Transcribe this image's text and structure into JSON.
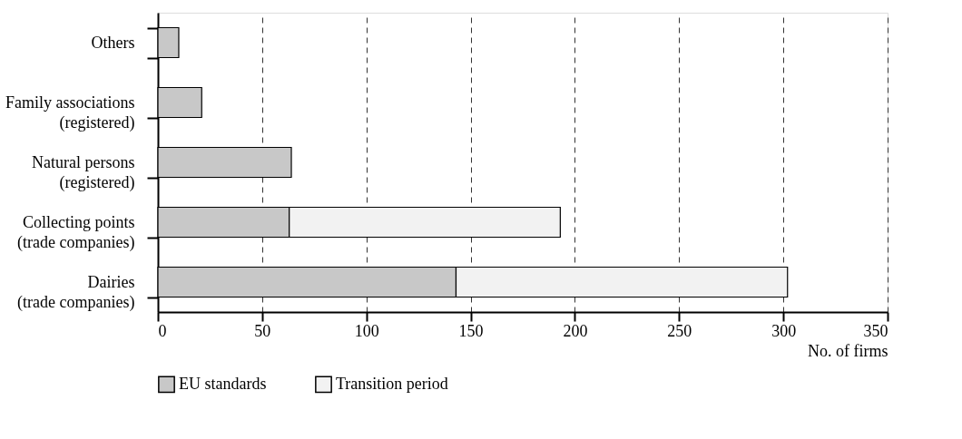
{
  "chart_data": {
    "type": "bar",
    "orientation": "horizontal",
    "stacked": true,
    "categories": [
      "Others",
      "Family associations (registered)",
      "Natural persons (registered)",
      "Collecting points (trade companies)",
      "Dairies (trade companies)"
    ],
    "series": [
      {
        "name": "EU standards",
        "color": "#c8c8c8",
        "values": [
          10,
          21,
          64,
          63,
          143
        ]
      },
      {
        "name": "Transition period",
        "color": "#f2f2f2",
        "values": [
          null,
          null,
          null,
          130,
          159
        ]
      }
    ],
    "xlabel": "No. of firms",
    "xlim": [
      0,
      350
    ],
    "xticks": [
      0,
      50,
      100,
      150,
      200,
      250,
      300,
      350
    ],
    "grid": "x",
    "legend": "bottom"
  }
}
